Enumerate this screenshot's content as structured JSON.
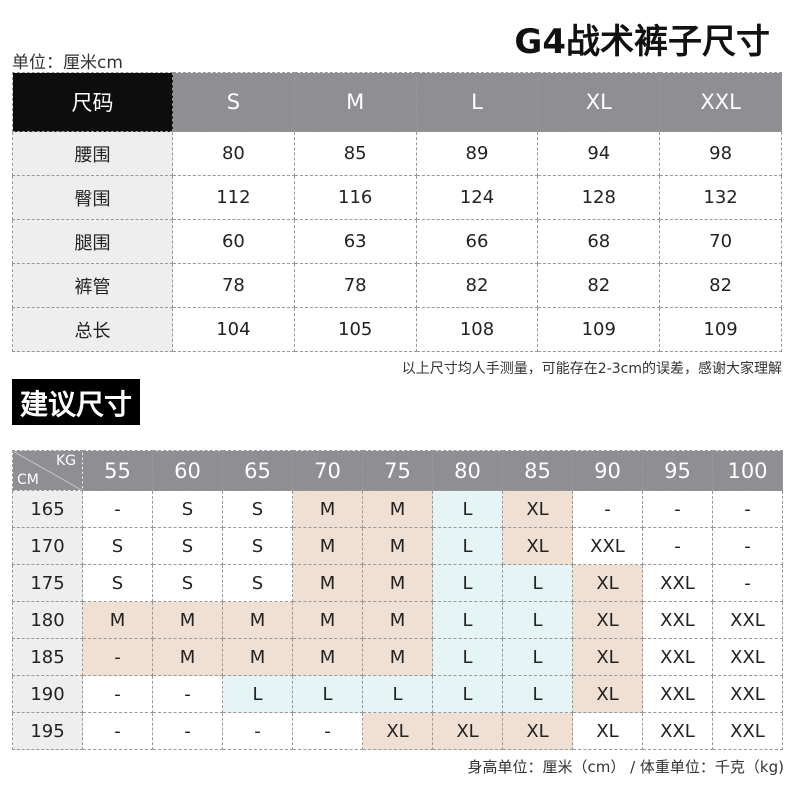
{
  "title": "G4战术裤子尺寸",
  "unit_label": "单位：厘米cm",
  "size_table": {
    "header_label": "尺码",
    "sizes": [
      "S",
      "M",
      "L",
      "XL",
      "XXL"
    ],
    "rows": [
      {
        "label": "腰围",
        "values": [
          "80",
          "85",
          "89",
          "94",
          "98"
        ]
      },
      {
        "label": "臀围",
        "values": [
          "112",
          "116",
          "124",
          "128",
          "132"
        ]
      },
      {
        "label": "腿围",
        "values": [
          "60",
          "63",
          "66",
          "68",
          "70"
        ]
      },
      {
        "label": "裤管",
        "values": [
          "78",
          "78",
          "82",
          "82",
          "82"
        ]
      },
      {
        "label": "总长",
        "values": [
          "104",
          "105",
          "108",
          "109",
          "109"
        ]
      }
    ]
  },
  "note": "以上尺寸均人手测量，可能存在2-3cm的误差，感谢大家理解",
  "section_title": "建议尺寸",
  "recommend_table": {
    "corner_kg": "KG",
    "corner_cm": "CM",
    "weights": [
      "55",
      "60",
      "65",
      "70",
      "75",
      "80",
      "85",
      "90",
      "95",
      "100"
    ],
    "rows": [
      {
        "height": "165",
        "sizes": [
          "-",
          "S",
          "S",
          "M",
          "M",
          "L",
          "XL",
          "-",
          "-",
          "-"
        ]
      },
      {
        "height": "170",
        "sizes": [
          "S",
          "S",
          "S",
          "M",
          "M",
          "L",
          "XL",
          "XXL",
          "-",
          "-"
        ]
      },
      {
        "height": "175",
        "sizes": [
          "S",
          "S",
          "S",
          "M",
          "M",
          "L",
          "L",
          "XL",
          "XXL",
          "-"
        ]
      },
      {
        "height": "180",
        "sizes": [
          "M",
          "M",
          "M",
          "M",
          "M",
          "L",
          "L",
          "XL",
          "XXL",
          "XXL"
        ]
      },
      {
        "height": "185",
        "sizes": [
          "-",
          "M",
          "M",
          "M",
          "M",
          "L",
          "L",
          "XL",
          "XXL",
          "XXL"
        ]
      },
      {
        "height": "190",
        "sizes": [
          "-",
          "-",
          "L",
          "L",
          "L",
          "L",
          "L",
          "XL",
          "XXL",
          "XXL"
        ]
      },
      {
        "height": "195",
        "sizes": [
          "-",
          "-",
          "-",
          "-",
          "XL",
          "XL",
          "XL",
          "XL",
          "XXL",
          "XXL"
        ]
      }
    ],
    "shading": [
      "wwwppbpwww",
      "wwwppbpwww",
      "wwwppbbpww",
      "pppppbbpww",
      "pppppbbpww",
      "wwbbbbbpww",
      "wwwwpppwww"
    ],
    "colors": {
      "peach": "#f0e0d4",
      "blue": "#e5f4f5",
      "header": "#8e8e93"
    }
  },
  "footer": "身高单位：厘米（cm） / 体重单位：千克（kg)"
}
